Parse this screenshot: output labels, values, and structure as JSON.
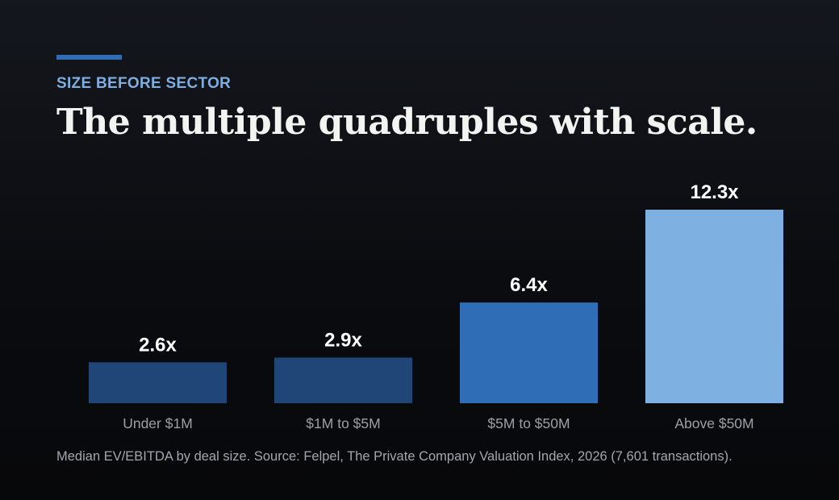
{
  "eyebrow": "SIZE BEFORE SECTOR",
  "headline": "The multiple quadruples with scale.",
  "footnote": "Median EV/EBITDA by deal size. Source: Felpel, The Private Company Valuation Index, 2026 (7,601 transactions).",
  "colors": {
    "accent": "#2f6db6",
    "eyebrow": "#7eaee0",
    "bar_small": "#1f4677",
    "bar_mid": "#2f6db6",
    "bar_large": "#7eb0e2"
  },
  "chart_data": {
    "type": "bar",
    "categories": [
      "Under $1M",
      "$1M to $5M",
      "$5M to $50M",
      "Above $50M"
    ],
    "values": [
      2.6,
      2.9,
      6.4,
      12.3
    ],
    "value_labels": [
      "2.6x",
      "2.9x",
      "6.4x",
      "12.3x"
    ],
    "bar_colors": [
      "#1f4677",
      "#1f4677",
      "#2f6db6",
      "#7eb0e2"
    ],
    "title": "",
    "xlabel": "",
    "ylabel": "",
    "ylim": [
      0,
      12.3
    ],
    "grid": false,
    "legend": "none"
  }
}
